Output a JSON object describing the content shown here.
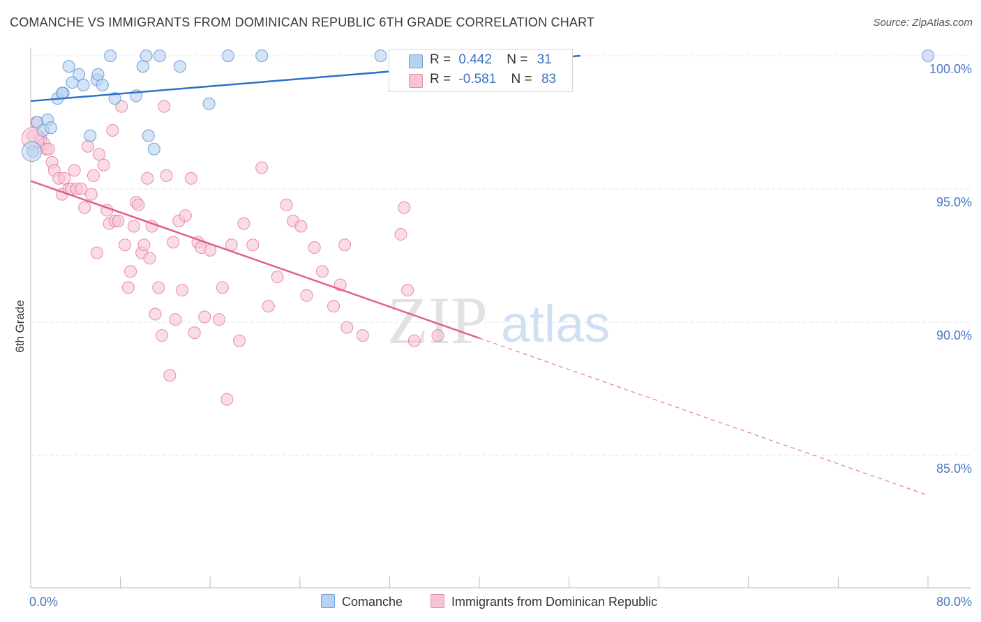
{
  "title": "COMANCHE VS IMMIGRANTS FROM DOMINICAN REPUBLIC 6TH GRADE CORRELATION CHART",
  "source": "Source: ZipAtlas.com",
  "watermark": {
    "zip": "ZIP",
    "atlas": "atlas"
  },
  "colors": {
    "blue": "#6fa0dc",
    "blue_fill": "#b8d1f0",
    "blue_line": "#2f6fc8",
    "pink": "#e88aaa",
    "pink_fill": "#f6c4d4",
    "pink_line": "#e0608c",
    "grid": "#e6e6e6",
    "tick_text": "#4a78c0"
  },
  "legend_top": [
    {
      "r_label": "R =",
      "r_value": "0.442",
      "n_label": "N =",
      "n_value": "31"
    },
    {
      "r_label": "R =",
      "r_value": "-0.581",
      "n_label": "N =",
      "n_value": "83"
    }
  ],
  "chart_data": {
    "type": "scatter",
    "title": "COMANCHE VS IMMIGRANTS FROM DOMINICAN REPUBLIC 6TH GRADE CORRELATION CHART",
    "xlabel": "",
    "ylabel": "6th Grade",
    "xlim": [
      0,
      80
    ],
    "ylim": [
      80.5,
      100.5
    ],
    "x_tick_labels": [
      "0.0%",
      "80.0%"
    ],
    "y_ticks": [
      85,
      90,
      95,
      100
    ],
    "y_tick_labels": [
      "85.0%",
      "90.0%",
      "95.0%",
      "100.0%"
    ],
    "grid": true,
    "legend_placement": "bottom",
    "series": [
      {
        "name": "Comanche",
        "color": "#6fa0dc",
        "trend": {
          "x": [
            0,
            49
          ],
          "y": [
            98.3,
            100.0
          ]
        },
        "points": [
          [
            0.2,
            96.4
          ],
          [
            0.6,
            97.5
          ],
          [
            1.1,
            97.2
          ],
          [
            1.5,
            97.6
          ],
          [
            1.8,
            97.3
          ],
          [
            2.4,
            98.4
          ],
          [
            2.9,
            98.6
          ],
          [
            3.4,
            99.6
          ],
          [
            3.7,
            99.0
          ],
          [
            4.3,
            99.3
          ],
          [
            4.7,
            98.9
          ],
          [
            5.3,
            97.0
          ],
          [
            5.9,
            99.1
          ],
          [
            6.0,
            99.3
          ],
          [
            6.4,
            98.9
          ],
          [
            7.1,
            100.0
          ],
          [
            7.5,
            98.4
          ],
          [
            9.4,
            98.5
          ],
          [
            10.0,
            99.6
          ],
          [
            10.3,
            100.0
          ],
          [
            10.5,
            97.0
          ],
          [
            11.0,
            96.5
          ],
          [
            11.5,
            100.0
          ],
          [
            13.3,
            99.6
          ],
          [
            15.9,
            98.2
          ],
          [
            17.6,
            100.0
          ],
          [
            20.6,
            100.0
          ],
          [
            31.2,
            100.0
          ],
          [
            33.5,
            100.0
          ],
          [
            80.0,
            100.0
          ],
          [
            2.8,
            98.6
          ]
        ]
      },
      {
        "name": "Immigrants from Dominican Republic",
        "color": "#e88aaa",
        "trend": {
          "x": [
            0,
            40
          ],
          "y": [
            95.3,
            89.4
          ]
        },
        "trend_dashed": {
          "x": [
            40,
            80
          ],
          "y": [
            89.4,
            83.5
          ]
        },
        "points": [
          [
            0.2,
            97.0
          ],
          [
            0.5,
            97.5
          ],
          [
            0.9,
            96.9
          ],
          [
            1.2,
            96.7
          ],
          [
            1.4,
            96.5
          ],
          [
            1.6,
            96.5
          ],
          [
            1.9,
            96.0
          ],
          [
            2.1,
            95.7
          ],
          [
            2.5,
            95.4
          ],
          [
            2.8,
            94.8
          ],
          [
            3.0,
            95.4
          ],
          [
            3.4,
            95.0
          ],
          [
            3.6,
            95.0
          ],
          [
            3.9,
            95.7
          ],
          [
            4.1,
            95.0
          ],
          [
            4.5,
            95.0
          ],
          [
            4.8,
            94.3
          ],
          [
            5.1,
            96.6
          ],
          [
            5.4,
            94.8
          ],
          [
            5.6,
            95.5
          ],
          [
            5.9,
            92.6
          ],
          [
            6.1,
            96.3
          ],
          [
            6.5,
            95.9
          ],
          [
            6.8,
            94.2
          ],
          [
            7.0,
            93.7
          ],
          [
            7.3,
            97.2
          ],
          [
            7.5,
            93.8
          ],
          [
            7.8,
            93.8
          ],
          [
            8.1,
            98.1
          ],
          [
            8.4,
            92.9
          ],
          [
            8.7,
            91.3
          ],
          [
            8.9,
            91.9
          ],
          [
            9.2,
            93.6
          ],
          [
            9.4,
            94.5
          ],
          [
            9.6,
            94.4
          ],
          [
            9.9,
            92.6
          ],
          [
            10.1,
            92.9
          ],
          [
            10.4,
            95.4
          ],
          [
            10.6,
            92.4
          ],
          [
            10.8,
            93.6
          ],
          [
            11.1,
            90.3
          ],
          [
            11.4,
            91.3
          ],
          [
            11.7,
            89.5
          ],
          [
            11.9,
            98.1
          ],
          [
            12.1,
            95.5
          ],
          [
            12.4,
            88.0
          ],
          [
            12.7,
            93.0
          ],
          [
            12.9,
            90.1
          ],
          [
            13.2,
            93.8
          ],
          [
            13.5,
            91.2
          ],
          [
            13.8,
            94.0
          ],
          [
            14.3,
            95.4
          ],
          [
            14.6,
            89.6
          ],
          [
            14.9,
            93.0
          ],
          [
            15.2,
            92.8
          ],
          [
            15.5,
            90.2
          ],
          [
            16.0,
            92.7
          ],
          [
            16.8,
            90.1
          ],
          [
            17.1,
            91.3
          ],
          [
            17.5,
            87.1
          ],
          [
            17.9,
            92.9
          ],
          [
            18.6,
            89.3
          ],
          [
            19.0,
            93.7
          ],
          [
            19.8,
            92.9
          ],
          [
            20.6,
            95.8
          ],
          [
            21.2,
            90.6
          ],
          [
            22.0,
            91.7
          ],
          [
            22.8,
            94.4
          ],
          [
            23.4,
            93.8
          ],
          [
            24.1,
            93.6
          ],
          [
            24.6,
            91.0
          ],
          [
            25.3,
            92.8
          ],
          [
            26.0,
            91.9
          ],
          [
            27.0,
            90.6
          ],
          [
            27.6,
            91.4
          ],
          [
            28.0,
            92.9
          ],
          [
            29.6,
            89.5
          ],
          [
            28.2,
            89.8
          ],
          [
            33.0,
            93.3
          ],
          [
            33.3,
            94.3
          ],
          [
            33.6,
            91.2
          ],
          [
            34.2,
            89.3
          ],
          [
            36.3,
            89.5
          ]
        ]
      }
    ]
  }
}
